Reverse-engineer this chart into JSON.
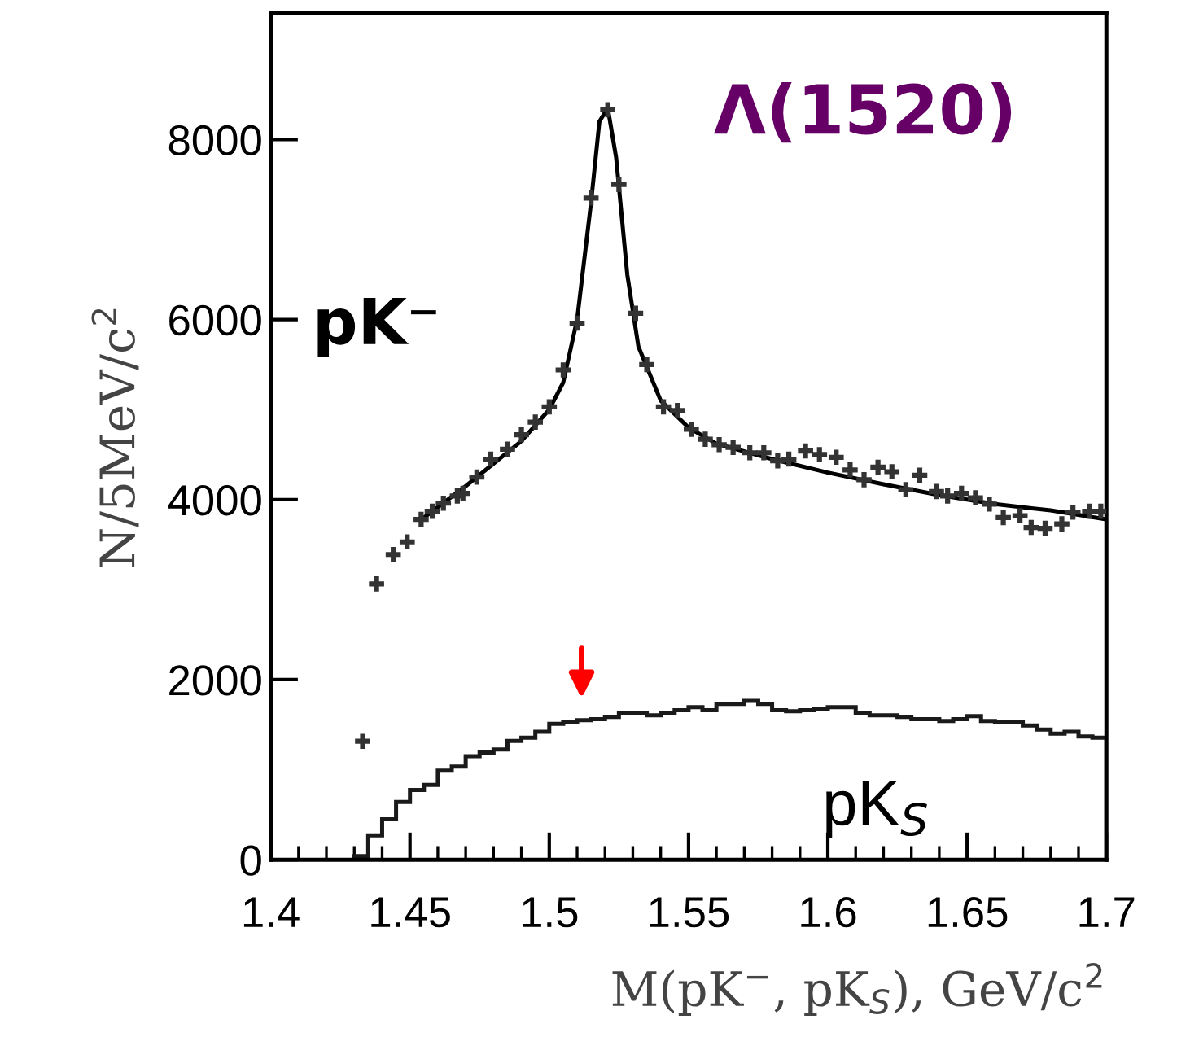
{
  "chart_data": {
    "type": "scatter",
    "xlabel": "M(pK$^{−}$, pK$_{S}$), GeV/c$^{2}$",
    "ylabel": "N/5MeV/c$^{2}$",
    "xlim": [
      1.4,
      1.7
    ],
    "xticks": [
      1.4,
      1.45,
      1.5,
      1.55,
      1.6,
      1.65,
      1.7
    ],
    "ylim": [
      0,
      9400
    ],
    "yticks": [
      0,
      2000,
      4000,
      6000,
      8000
    ],
    "grid": false,
    "series": [
      {
        "marker": "cross",
        "color": "#333333",
        "x": [
          1.433,
          1.438,
          1.444,
          1.449,
          1.454,
          1.458,
          1.462,
          1.467,
          1.469,
          1.474,
          1.479,
          1.485,
          1.49,
          1.495,
          1.5,
          1.505,
          1.51,
          1.515,
          1.521,
          1.525,
          1.531,
          1.535,
          1.541,
          1.546,
          1.551,
          1.556,
          1.561,
          1.566,
          1.572,
          1.577,
          1.582,
          1.586,
          1.592,
          1.597,
          1.603,
          1.608,
          1.613,
          1.618,
          1.623,
          1.628,
          1.633,
          1.639,
          1.643,
          1.648,
          1.653,
          1.658,
          1.663,
          1.669,
          1.673,
          1.678,
          1.684,
          1.688,
          1.694,
          1.698
        ],
        "values": [
          1315,
          3063,
          3390,
          3530,
          3780,
          3870,
          3960,
          4040,
          4070,
          4250,
          4450,
          4560,
          4720,
          4860,
          5030,
          5440,
          5960,
          7350,
          8330,
          7500,
          6070,
          5500,
          5030,
          4990,
          4780,
          4670,
          4610,
          4580,
          4520,
          4520,
          4430,
          4450,
          4540,
          4500,
          4470,
          4330,
          4220,
          4360,
          4310,
          4110,
          4270,
          4090,
          4040,
          4070,
          4020,
          3950,
          3800,
          3820,
          3690,
          3680,
          3730,
          3860,
          3870,
          3870
        ]
      },
      {
        "type": "line",
        "line_style": "solid",
        "color": "#000000",
        "x": [
          1.455,
          1.47,
          1.49,
          1.5,
          1.505,
          1.51,
          1.515,
          1.518,
          1.521,
          1.524,
          1.528,
          1.532,
          1.54,
          1.55,
          1.56,
          1.58,
          1.6,
          1.62,
          1.64,
          1.66,
          1.68,
          1.7
        ],
        "values": [
          3800,
          4150,
          4650,
          5000,
          5300,
          6000,
          7300,
          8200,
          8350,
          7800,
          6500,
          5700,
          5100,
          4800,
          4620,
          4450,
          4300,
          4170,
          4050,
          3950,
          3880,
          3780
        ]
      },
      {
        "type": "histogram",
        "color": "#1a1a1a",
        "bins": [
          1.43,
          1.435,
          1.44,
          1.445,
          1.45,
          1.455,
          1.46,
          1.465,
          1.47,
          1.475,
          1.48,
          1.485,
          1.49,
          1.495,
          1.5,
          1.505,
          1.51,
          1.515,
          1.52,
          1.525,
          1.53,
          1.535,
          1.54,
          1.545,
          1.55,
          1.555,
          1.56,
          1.565,
          1.57,
          1.575,
          1.58,
          1.585,
          1.59,
          1.595,
          1.6,
          1.605,
          1.61,
          1.615,
          1.62,
          1.625,
          1.63,
          1.635,
          1.64,
          1.645,
          1.65,
          1.655,
          1.66,
          1.665,
          1.67,
          1.675,
          1.68,
          1.685,
          1.69,
          1.695,
          1.7
        ],
        "values": [
          40,
          270,
          450,
          640,
          775,
          830,
          990,
          1035,
          1150,
          1190,
          1225,
          1320,
          1355,
          1420,
          1510,
          1525,
          1550,
          1560,
          1585,
          1630,
          1630,
          1605,
          1630,
          1660,
          1695,
          1660,
          1730,
          1730,
          1765,
          1730,
          1660,
          1650,
          1660,
          1675,
          1695,
          1695,
          1630,
          1605,
          1605,
          1585,
          1560,
          1560,
          1540,
          1560,
          1595,
          1540,
          1525,
          1525,
          1490,
          1445,
          1400,
          1420,
          1370,
          1355
        ]
      }
    ],
    "annotations": [
      "Λ(1520)",
      "pK⁻",
      "pK$_{S}$"
    ]
  }
}
